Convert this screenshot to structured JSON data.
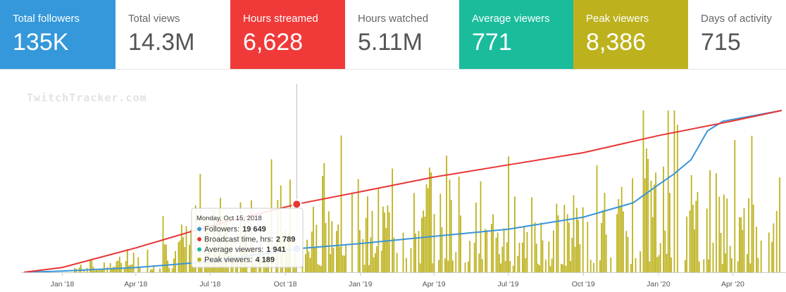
{
  "stats": [
    {
      "label": "Total followers",
      "value": "135K",
      "color": "#3498db"
    },
    {
      "label": "Total views",
      "value": "14.3M",
      "color": ""
    },
    {
      "label": "Hours streamed",
      "value": "6,628",
      "color": "#f03a3a"
    },
    {
      "label": "Hours watched",
      "value": "5.11M",
      "color": ""
    },
    {
      "label": "Average viewers",
      "value": "771",
      "color": "#1abc9c"
    },
    {
      "label": "Peak viewers",
      "value": "8,386",
      "color": "#bdb21e"
    },
    {
      "label": "Days of activity",
      "value": "715",
      "color": ""
    }
  ],
  "watermark": "TwitchTracker.com",
  "tooltip": {
    "date": "Monday, Oct 15, 2018",
    "rows": [
      {
        "label": "Followers:",
        "value": "19 649",
        "color": "#3a95d6"
      },
      {
        "label": "Broadcast time, hrs:",
        "value": "2 789",
        "color": "#e83535"
      },
      {
        "label": "Average viewers:",
        "value": "1 941",
        "color": "#1abc9c"
      },
      {
        "label": "Peak viewers:",
        "value": "4 189",
        "color": "#bdb21e"
      }
    ]
  },
  "chart_data": {
    "type": "line",
    "title": "",
    "xlabel": "",
    "ylabel": "",
    "x_ticks": [
      "Jan '18",
      "Apr '18",
      "Jul '18",
      "Oct '18",
      "Jan '19",
      "Apr '19",
      "Jul '19",
      "Oct '19",
      "Jan '20",
      "Apr '20"
    ],
    "x_range": [
      "2017-11-15",
      "2020-05-31"
    ],
    "series": [
      {
        "name": "Followers",
        "color": "#3a95d6",
        "axis_max": 135000,
        "points": [
          [
            "2017-11-15",
            0
          ],
          [
            "2018-01-01",
            1000
          ],
          [
            "2018-04-01",
            4000
          ],
          [
            "2018-07-01",
            9000
          ],
          [
            "2018-10-15",
            19649
          ],
          [
            "2019-01-01",
            24000
          ],
          [
            "2019-04-01",
            30000
          ],
          [
            "2019-07-01",
            36000
          ],
          [
            "2019-10-01",
            46000
          ],
          [
            "2019-12-01",
            58000
          ],
          [
            "2020-01-01",
            73000
          ],
          [
            "2020-01-20",
            82000
          ],
          [
            "2020-02-10",
            94000
          ],
          [
            "2020-03-01",
            118000
          ],
          [
            "2020-03-20",
            126000
          ],
          [
            "2020-05-31",
            135000
          ]
        ]
      },
      {
        "name": "Broadcast time, hrs",
        "color": "#e83535",
        "axis_max": 6628,
        "points": [
          [
            "2017-11-15",
            0
          ],
          [
            "2018-01-01",
            200
          ],
          [
            "2018-04-01",
            1000
          ],
          [
            "2018-07-01",
            1900
          ],
          [
            "2018-10-15",
            2789
          ],
          [
            "2019-01-01",
            3300
          ],
          [
            "2019-04-01",
            3900
          ],
          [
            "2019-07-01",
            4400
          ],
          [
            "2019-10-01",
            4900
          ],
          [
            "2020-01-01",
            5600
          ],
          [
            "2020-04-01",
            6200
          ],
          [
            "2020-05-31",
            6628
          ]
        ]
      },
      {
        "name": "Peak viewers",
        "color": "#bdb21e",
        "type": "bar",
        "axis_max": 8386,
        "points": [
          [
            "2018-01-15",
            500
          ],
          [
            "2018-02-15",
            700
          ],
          [
            "2018-03-15",
            900
          ],
          [
            "2018-04-15",
            1500
          ],
          [
            "2018-05-15",
            2500
          ],
          [
            "2018-06-15",
            3500
          ],
          [
            "2018-07-15",
            3000
          ],
          [
            "2018-08-15",
            4000
          ],
          [
            "2018-09-15",
            4500
          ],
          [
            "2018-10-15",
            4189
          ],
          [
            "2018-11-15",
            4000
          ],
          [
            "2018-12-15",
            5000
          ],
          [
            "2019-01-15",
            4500
          ],
          [
            "2019-02-15",
            5500
          ],
          [
            "2019-03-15",
            5000
          ],
          [
            "2019-04-15",
            5500
          ],
          [
            "2019-05-15",
            5000
          ],
          [
            "2019-06-15",
            4500
          ],
          [
            "2019-07-15",
            4000
          ],
          [
            "2019-08-15",
            4000
          ],
          [
            "2019-09-15",
            3500
          ],
          [
            "2019-10-15",
            3800
          ],
          [
            "2019-11-15",
            4500
          ],
          [
            "2019-12-15",
            6500
          ],
          [
            "2020-01-15",
            8386
          ],
          [
            "2020-02-15",
            6000
          ],
          [
            "2020-03-15",
            5500
          ],
          [
            "2020-04-15",
            5000
          ],
          [
            "2020-05-15",
            5000
          ]
        ]
      }
    ],
    "crosshair_date": "2018-10-15"
  }
}
